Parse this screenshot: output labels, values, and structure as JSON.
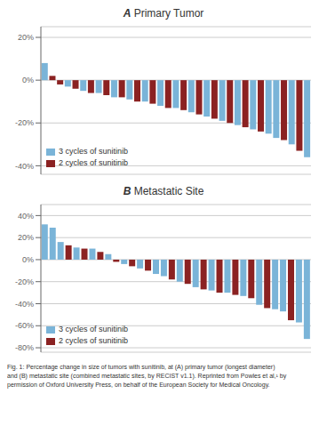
{
  "caption": "Fig. 1: Percentage change in size of tumors with sunitinib, at (A) primary tumor (longest diameter)\nand (B) metastatic site (combined metastatic sites, by RECIST v1.1). Reprinted from Powles et al,¹ by\npermission of Oxford University Press, on behalf of the European Society for Medical Oncology.",
  "chart_data": [
    {
      "type": "bar",
      "label": "A",
      "title": "Primary Tumor",
      "stacked": true,
      "grid": true,
      "legend": "lower left",
      "tick_labels": "y",
      "ylim": [
        -44,
        25
      ],
      "yticks": [
        {
          "value": -40,
          "label": "-40%"
        },
        {
          "value": -20,
          "label": "-20%"
        },
        {
          "value": 0,
          "label": "0%"
        },
        {
          "value": 20,
          "label": "20%"
        }
      ],
      "series": [
        {
          "name": "3 cycles of sunitinib",
          "color": "#7ab4d8",
          "values": [
            8,
            null,
            null,
            -3,
            null,
            -5,
            null,
            -6,
            null,
            -8,
            null,
            -9,
            null,
            -10,
            null,
            -12,
            null,
            -13,
            null,
            -15,
            null,
            -17,
            null,
            -19,
            null,
            -21,
            null,
            -23,
            null,
            -25,
            -27,
            null,
            -30,
            null,
            -36
          ]
        },
        {
          "name": "2 cycles of sunitinib",
          "color": "#8b2222",
          "values": [
            null,
            2,
            -2,
            null,
            -4,
            null,
            -6,
            null,
            -7,
            null,
            -8,
            null,
            -10,
            null,
            -11,
            null,
            -13,
            null,
            -14,
            null,
            -16,
            null,
            -18,
            null,
            -20,
            null,
            -22,
            null,
            -24,
            null,
            null,
            -28,
            null,
            -33,
            null
          ]
        }
      ]
    },
    {
      "type": "bar",
      "label": "B",
      "title": "Metastatic Site",
      "stacked": true,
      "grid": true,
      "legend": "lower left",
      "tick_labels": "y",
      "ylim": [
        -84,
        50
      ],
      "yticks": [
        {
          "value": -80,
          "label": "-80%"
        },
        {
          "value": -60,
          "label": "-60%"
        },
        {
          "value": -40,
          "label": "-40%"
        },
        {
          "value": -20,
          "label": "-20%"
        },
        {
          "value": 0,
          "label": "0%"
        },
        {
          "value": 20,
          "label": "20%"
        },
        {
          "value": 40,
          "label": "40%"
        }
      ],
      "series": [
        {
          "name": "3 cycles of sunitinib",
          "color": "#7ab4d8",
          "values": [
            32,
            29,
            16,
            null,
            11,
            null,
            10,
            null,
            5,
            null,
            -4,
            null,
            -8,
            null,
            -13,
            -15,
            null,
            -20,
            null,
            -25,
            null,
            -28,
            null,
            -30,
            null,
            -33,
            null,
            -41,
            null,
            -45,
            -47,
            null,
            -57,
            -72
          ]
        },
        {
          "name": "2 cycles of sunitinib",
          "color": "#8b2222",
          "values": [
            null,
            null,
            null,
            13,
            null,
            10,
            null,
            7,
            null,
            -2,
            null,
            -6,
            null,
            -10,
            null,
            null,
            -18,
            null,
            -22,
            null,
            -27,
            null,
            -30,
            null,
            -32,
            null,
            -35,
            null,
            -44,
            null,
            null,
            -55,
            null,
            null
          ]
        }
      ]
    }
  ]
}
